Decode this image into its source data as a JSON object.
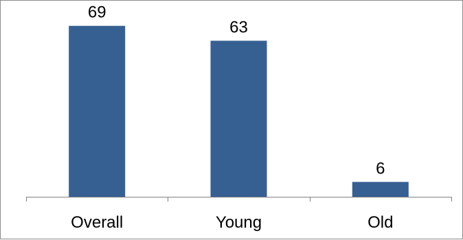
{
  "chart_data": {
    "type": "bar",
    "title": "",
    "xlabel": "",
    "ylabel": "",
    "categories": [
      "Overall",
      "Young",
      "Old"
    ],
    "values": [
      69,
      63,
      6
    ],
    "ylim": [
      0,
      75
    ],
    "grid": false,
    "legend": "none",
    "bar_color": "#376092",
    "axis_color": "#808080"
  }
}
